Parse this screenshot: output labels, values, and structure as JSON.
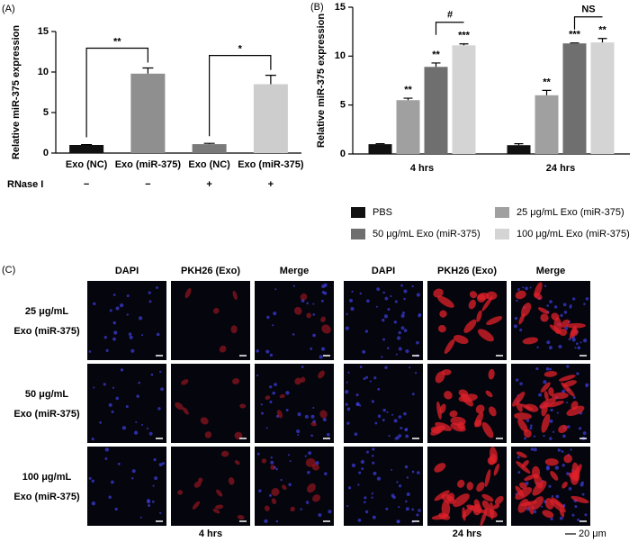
{
  "panel_labels": [
    "(A)",
    "(B)",
    "(C)"
  ],
  "chart_data": [
    {
      "type": "bar",
      "ylabel": "Relative miR-375 expression",
      "categories": [
        "Exo (NC)",
        "Exo (miR-375)",
        "Exo (NC)",
        "Exo (miR-375)"
      ],
      "values": [
        1.0,
        9.8,
        1.1,
        8.5
      ],
      "errors": [
        0.05,
        0.7,
        0.1,
        1.1
      ],
      "colors": [
        "#111111",
        "#8f8f8f",
        "#7a7a7a",
        "#cdcdcd"
      ],
      "ylim": [
        0,
        15
      ],
      "yticks": [
        0,
        5,
        10,
        15
      ],
      "treatment": {
        "label": "RNase I",
        "values": [
          "−",
          "−",
          "+",
          "+"
        ]
      },
      "comparisons": [
        "**",
        "*"
      ]
    },
    {
      "type": "grouped_bar",
      "ylabel": "Relative miR-375 expression",
      "categories": [
        "4 hrs",
        "24 hrs"
      ],
      "series": [
        {
          "name": "PBS",
          "color": "#111111",
          "values": [
            1.0,
            0.9
          ],
          "errors": [
            0.05,
            0.15
          ],
          "labels": [
            null,
            null
          ]
        },
        {
          "name": "25 μg/mL Exo (miR-375)",
          "color": "#a0a0a0",
          "values": [
            5.5,
            6.0
          ],
          "errors": [
            0.2,
            0.5
          ],
          "labels": [
            "**",
            "**"
          ]
        },
        {
          "name": "50 μg/mL Exo (miR-375)",
          "color": "#6f6f6f",
          "values": [
            8.9,
            11.3
          ],
          "errors": [
            0.4,
            0.05
          ],
          "labels": [
            "**",
            "***"
          ]
        },
        {
          "name": "100 μg/mL Exo (miR-375)",
          "color": "#d4d4d4",
          "values": [
            11.1,
            11.4
          ],
          "errors": [
            0.15,
            0.4
          ],
          "labels": [
            "***",
            "**"
          ]
        }
      ],
      "ylim": [
        0,
        15
      ],
      "yticks": [
        0,
        5,
        10,
        15
      ],
      "comparisons": [
        "#",
        "NS"
      ],
      "legend": "bottom"
    }
  ],
  "microscopy": {
    "columns": [
      "DAPI",
      "PKH26 (Exo)",
      "Merge",
      "DAPI",
      "PKH26 (Exo)",
      "Merge"
    ],
    "rows": [
      [
        "25 μg/mL",
        "Exo (miR-375)"
      ],
      [
        "50 μg/mL",
        "Exo (miR-375)"
      ],
      [
        "100 μg/mL",
        "Exo (miR-375)"
      ]
    ],
    "timepoints": [
      "4 hrs",
      "24 hrs"
    ],
    "scale_bar": "20 μm"
  }
}
